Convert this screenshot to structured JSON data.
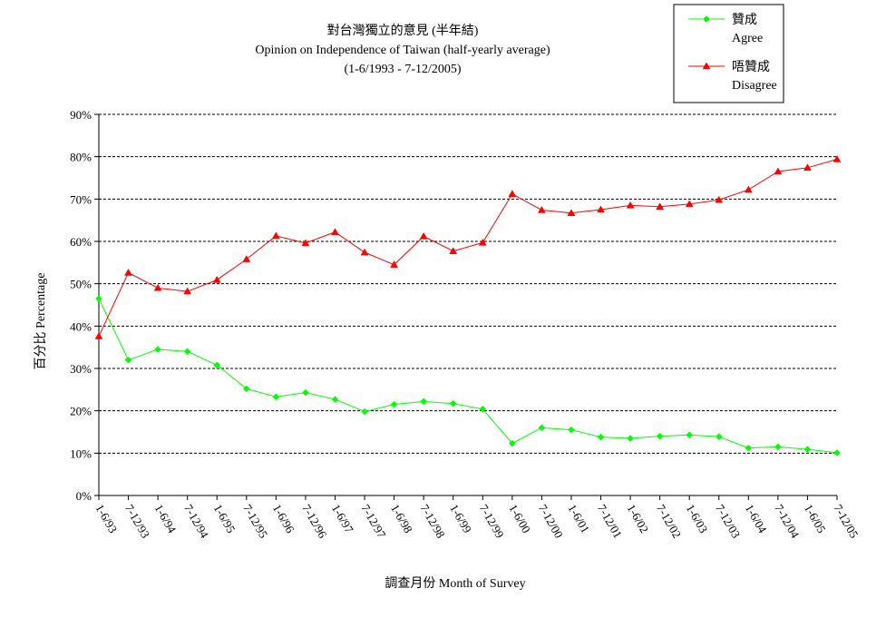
{
  "chart_data": {
    "type": "line",
    "title": "對台灣獨立的意見 (半年結)",
    "subtitle": "Opinion on Independence of Taiwan  (half-yearly average)",
    "subtitle2": "(1-6/1993 - 7-12/2005)",
    "xlabel": "調查月份 Month of Survey",
    "ylabel": "百分比 Percentage",
    "ylim": [
      0,
      90
    ],
    "yticks": [
      "0%",
      "10%",
      "20%",
      "30%",
      "40%",
      "50%",
      "60%",
      "70%",
      "80%",
      "90%"
    ],
    "grid": true,
    "legend_position": "top-right",
    "categories": [
      "1-6/93",
      "7-12/93",
      "1-6/94",
      "7-12/94",
      "1-6/95",
      "7-12/95",
      "1-6/96",
      "7-12/96",
      "1-6/97",
      "7-12/97",
      "1-6/98",
      "7-12/98",
      "1-6/99",
      "7-12/99",
      "1-6/00",
      "7-12/00",
      "1-6/01",
      "7-12/01",
      "1-6/02",
      "7-12/02",
      "1-6/03",
      "7-12/03",
      "1-6/04",
      "7-12/04",
      "1-6/05",
      "7-12/05"
    ],
    "series": [
      {
        "name": "贊成",
        "name_en": "Agree",
        "color": "#00ff00",
        "marker": "diamond",
        "values": [
          46.5,
          32.0,
          34.5,
          34.0,
          30.8,
          25.2,
          23.3,
          24.3,
          22.7,
          19.8,
          21.5,
          22.2,
          21.7,
          20.4,
          12.3,
          16.0,
          15.5,
          13.8,
          13.5,
          14.0,
          14.3,
          13.9,
          11.2,
          11.5,
          10.9,
          10.1
        ]
      },
      {
        "name": "唔贊成",
        "name_en": "Disagree",
        "color": "#ff0000",
        "marker": "triangle",
        "values": [
          37.6,
          52.6,
          49.0,
          48.2,
          50.9,
          55.8,
          61.3,
          59.6,
          62.2,
          57.4,
          54.5,
          61.2,
          57.7,
          59.7,
          71.2,
          67.4,
          66.7,
          67.5,
          68.5,
          68.2,
          68.8,
          69.8,
          72.2,
          76.5,
          77.4,
          79.4
        ]
      }
    ]
  }
}
